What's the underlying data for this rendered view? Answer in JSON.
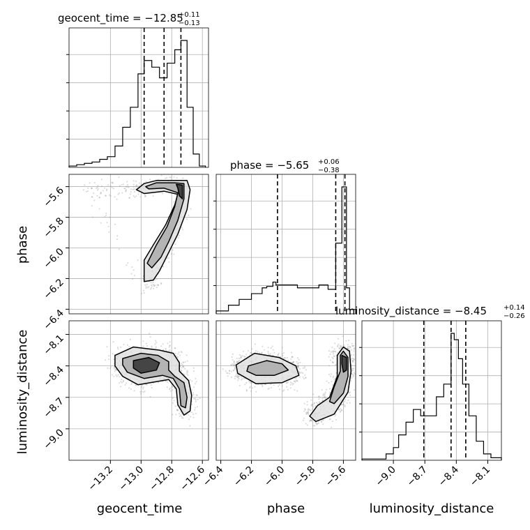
{
  "chart_data": {
    "type": "corner",
    "grid": true,
    "parameters": [
      "geocent_time",
      "phase",
      "luminosity_distance"
    ],
    "axis_labels": {
      "geocent_time": "geocent_time",
      "phase": "phase",
      "luminosity_distance": "luminosity_distance"
    },
    "ranges": {
      "geocent_time": [
        -13.47,
        -12.56
      ],
      "phase": [
        -6.43,
        -5.52
      ],
      "luminosity_distance": [
        -9.3,
        -7.97
      ]
    },
    "ticks": {
      "geocent_time": [
        -13.2,
        -13.0,
        -12.8,
        -12.6
      ],
      "phase": [
        -6.4,
        -6.2,
        -6.0,
        -5.8,
        -5.6
      ],
      "luminosity_distance": [
        -9.0,
        -8.7,
        -8.4,
        -8.1
      ]
    },
    "tick_labels": {
      "geocent_time": [
        "−13.2",
        "−13.0",
        "−12.8",
        "−12.6"
      ],
      "phase": [
        "−6.4",
        "−6.2",
        "−6.0",
        "−5.8",
        "−5.6"
      ],
      "luminosity_distance": [
        "−9.0",
        "−8.7",
        "−8.4",
        "−8.1"
      ]
    },
    "titles": {
      "geocent_time": {
        "prefix": "geocent_time = −12.85",
        "plus": "+0.11",
        "minus": "−0.13"
      },
      "phase": {
        "prefix": "phase = −5.65",
        "plus": "+0.06",
        "minus": "−0.38"
      },
      "luminosity_distance": {
        "prefix": "luminosity_distance = −8.45",
        "plus": "+0.14",
        "minus": "−0.26"
      }
    },
    "quantiles": {
      "geocent_time": [
        -12.98,
        -12.85,
        -12.74
      ],
      "phase": [
        -6.03,
        -5.65,
        -5.59
      ],
      "luminosity_distance": [
        -8.71,
        -8.45,
        -8.31
      ]
    },
    "histograms": {
      "geocent_time": {
        "bin_edges": [
          -13.47,
          -13.42,
          -13.37,
          -13.32,
          -13.27,
          -13.22,
          -13.17,
          -13.12,
          -13.07,
          -13.02,
          -12.98,
          -12.93,
          -12.88,
          -12.83,
          -12.78,
          -12.74,
          -12.7,
          -12.66,
          -12.62,
          -12.58
        ],
        "counts": [
          1,
          2,
          3,
          4,
          6,
          8,
          16,
          30,
          45,
          70,
          80,
          75,
          67,
          78,
          88,
          95,
          45,
          10,
          1
        ]
      },
      "phase": {
        "bin_edges": [
          -6.43,
          -6.35,
          -6.28,
          -6.2,
          -6.13,
          -6.1,
          -6.06,
          -6.04,
          -6.02,
          -5.96,
          -5.9,
          -5.84,
          -5.76,
          -5.7,
          -5.65,
          -5.61,
          -5.58,
          -5.56,
          -5.52
        ],
        "counts": [
          2,
          6,
          10,
          14,
          18,
          19,
          22,
          20,
          20,
          20,
          18,
          18,
          20,
          17,
          49,
          88,
          18,
          3
        ]
      },
      "luminosity_distance": {
        "bin_edges": [
          -9.3,
          -9.07,
          -9.0,
          -8.95,
          -8.88,
          -8.81,
          -8.74,
          -8.66,
          -8.59,
          -8.52,
          -8.45,
          -8.42,
          -8.38,
          -8.34,
          -8.28,
          -8.21,
          -8.14,
          -8.07,
          -7.97
        ],
        "counts": [
          1,
          5,
          10,
          20,
          30,
          40,
          35,
          35,
          50,
          60,
          100,
          95,
          80,
          60,
          35,
          15,
          5,
          2
        ]
      }
    },
    "density_2d": [
      {
        "x": "geocent_time",
        "y": "phase",
        "ridge": [
          [
            -13.35,
            -5.61
          ],
          [
            -13.2,
            -5.62
          ],
          [
            -13.05,
            -5.62
          ],
          [
            -12.98,
            -5.625
          ],
          [
            -12.9,
            -5.59
          ],
          [
            -12.8,
            -5.58
          ],
          [
            -12.74,
            -5.6
          ],
          [
            -12.72,
            -5.7
          ],
          [
            -12.77,
            -5.85
          ],
          [
            -12.83,
            -5.97
          ],
          [
            -12.87,
            -6.08
          ],
          [
            -12.93,
            -6.2
          ],
          [
            -12.95,
            -6.26
          ]
        ],
        "levels": [
          {
            "level": "outer",
            "path": [
              [
                -13.03,
                -5.62
              ],
              [
                -12.98,
                -5.58
              ],
              [
                -12.9,
                -5.56
              ],
              [
                -12.78,
                -5.56
              ],
              [
                -12.7,
                -5.56
              ],
              [
                -12.68,
                -5.62
              ],
              [
                -12.7,
                -5.75
              ],
              [
                -12.76,
                -5.91
              ],
              [
                -12.82,
                -6.03
              ],
              [
                -12.88,
                -6.15
              ],
              [
                -12.92,
                -6.21
              ],
              [
                -12.98,
                -6.22
              ],
              [
                -12.98,
                -6.08
              ],
              [
                -12.92,
                -5.98
              ],
              [
                -12.84,
                -5.85
              ],
              [
                -12.78,
                -5.72
              ],
              [
                -12.76,
                -5.65
              ],
              [
                -12.85,
                -5.63
              ],
              [
                -12.98,
                -5.645
              ]
            ]
          },
          {
            "level": "middle",
            "path": [
              [
                -12.97,
                -5.6
              ],
              [
                -12.9,
                -5.575
              ],
              [
                -12.78,
                -5.575
              ],
              [
                -12.72,
                -5.58
              ],
              [
                -12.72,
                -5.68
              ],
              [
                -12.76,
                -5.82
              ],
              [
                -12.82,
                -5.96
              ],
              [
                -12.87,
                -6.06
              ],
              [
                -12.93,
                -6.13
              ],
              [
                -12.96,
                -6.1
              ],
              [
                -12.9,
                -5.98
              ],
              [
                -12.83,
                -5.86
              ],
              [
                -12.78,
                -5.73
              ],
              [
                -12.76,
                -5.64
              ],
              [
                -12.85,
                -5.61
              ],
              [
                -12.95,
                -5.615
              ]
            ]
          },
          {
            "level": "inner",
            "path": [
              [
                -12.77,
                -5.585
              ],
              [
                -12.73,
                -5.59
              ],
              [
                -12.73,
                -5.68
              ],
              [
                -12.75,
                -5.66
              ],
              [
                -12.76,
                -5.61
              ]
            ]
          }
        ]
      },
      {
        "x": "geocent_time",
        "y": "luminosity_distance",
        "levels": [
          {
            "level": "outer",
            "path": [
              [
                -13.17,
                -8.3
              ],
              [
                -13.05,
                -8.22
              ],
              [
                -12.88,
                -8.25
              ],
              [
                -12.79,
                -8.28
              ],
              [
                -12.75,
                -8.37
              ],
              [
                -12.75,
                -8.45
              ],
              [
                -12.69,
                -8.54
              ],
              [
                -12.67,
                -8.68
              ],
              [
                -12.68,
                -8.83
              ],
              [
                -12.72,
                -8.87
              ],
              [
                -12.76,
                -8.77
              ],
              [
                -12.77,
                -8.62
              ],
              [
                -12.82,
                -8.53
              ],
              [
                -12.9,
                -8.55
              ],
              [
                -13.02,
                -8.58
              ],
              [
                -13.12,
                -8.5
              ],
              [
                -13.17,
                -8.4
              ]
            ]
          },
          {
            "level": "middle",
            "path": [
              [
                -13.12,
                -8.33
              ],
              [
                -13.0,
                -8.28
              ],
              [
                -12.89,
                -8.3
              ],
              [
                -12.82,
                -8.36
              ],
              [
                -12.82,
                -8.44
              ],
              [
                -12.78,
                -8.5
              ],
              [
                -12.72,
                -8.56
              ],
              [
                -12.7,
                -8.7
              ],
              [
                -12.71,
                -8.8
              ],
              [
                -12.74,
                -8.78
              ],
              [
                -12.75,
                -8.62
              ],
              [
                -12.79,
                -8.52
              ],
              [
                -12.86,
                -8.49
              ],
              [
                -12.98,
                -8.52
              ],
              [
                -13.09,
                -8.46
              ],
              [
                -13.12,
                -8.39
              ]
            ]
          },
          {
            "level": "inner",
            "path": [
              [
                -13.05,
                -8.35
              ],
              [
                -12.95,
                -8.32
              ],
              [
                -12.88,
                -8.37
              ],
              [
                -12.9,
                -8.44
              ],
              [
                -13.0,
                -8.47
              ],
              [
                -13.05,
                -8.42
              ]
            ]
          }
        ]
      },
      {
        "x": "phase",
        "y": "luminosity_distance",
        "levels": [
          {
            "level": "outer",
            "path": [
              [
                -6.3,
                -8.39
              ],
              [
                -6.18,
                -8.28
              ],
              [
                -6.02,
                -8.32
              ],
              [
                -5.91,
                -8.4
              ],
              [
                -5.89,
                -8.49
              ],
              [
                -6.0,
                -8.56
              ],
              [
                -6.17,
                -8.57
              ],
              [
                -6.29,
                -8.47
              ]
            ]
          },
          {
            "level": "middle",
            "path": [
              [
                -6.22,
                -8.4
              ],
              [
                -6.1,
                -8.35
              ],
              [
                -6.0,
                -8.38
              ],
              [
                -5.96,
                -8.44
              ],
              [
                -6.05,
                -8.49
              ],
              [
                -6.17,
                -8.49
              ],
              [
                -6.23,
                -8.45
              ]
            ]
          },
          {
            "level": "outer",
            "path": [
              [
                -5.6,
                -8.22
              ],
              [
                -5.56,
                -8.26
              ],
              [
                -5.55,
                -8.45
              ],
              [
                -5.57,
                -8.65
              ],
              [
                -5.66,
                -8.86
              ],
              [
                -5.78,
                -8.93
              ],
              [
                -5.82,
                -8.88
              ],
              [
                -5.77,
                -8.78
              ],
              [
                -5.69,
                -8.7
              ],
              [
                -5.64,
                -8.5
              ],
              [
                -5.64,
                -8.3
              ]
            ]
          },
          {
            "level": "middle",
            "path": [
              [
                -5.6,
                -8.26
              ],
              [
                -5.57,
                -8.32
              ],
              [
                -5.57,
                -8.5
              ],
              [
                -5.6,
                -8.66
              ],
              [
                -5.66,
                -8.76
              ],
              [
                -5.69,
                -8.74
              ],
              [
                -5.66,
                -8.6
              ],
              [
                -5.62,
                -8.45
              ],
              [
                -5.62,
                -8.3
              ]
            ]
          },
          {
            "level": "inner",
            "path": [
              [
                -5.61,
                -8.3
              ],
              [
                -5.58,
                -8.32
              ],
              [
                -5.58,
                -8.44
              ],
              [
                -5.6,
                -8.46
              ],
              [
                -5.61,
                -8.38
              ]
            ]
          }
        ]
      }
    ]
  }
}
